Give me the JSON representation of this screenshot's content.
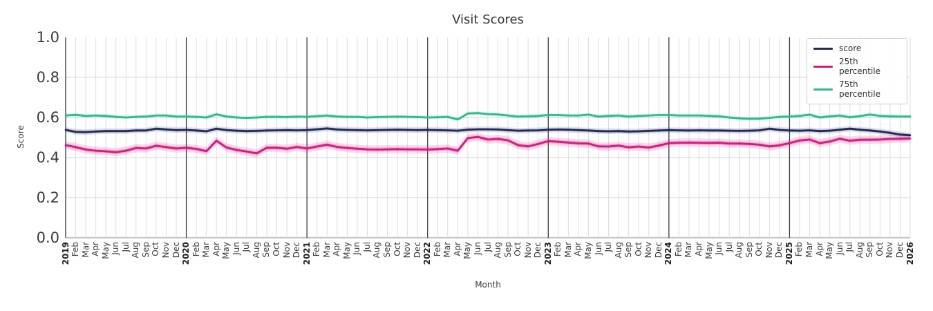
{
  "chart_data": {
    "type": "line",
    "title": "Visit Scores",
    "xlabel": "Month",
    "ylabel": "Score",
    "ylim": [
      0.0,
      1.0
    ],
    "yticks": [
      0.0,
      0.2,
      0.4,
      0.6,
      0.8,
      1.0
    ],
    "ytick_labels": [
      "0.0",
      "0.2",
      "0.4",
      "0.6",
      "0.8",
      "1.0"
    ],
    "grid": true,
    "legend_position": "upper right",
    "x_labels": [
      "2019",
      "Feb",
      "Mar",
      "Apr",
      "May",
      "Jun",
      "Jul",
      "Aug",
      "Sep",
      "Oct",
      "Nov",
      "Dec",
      "2020",
      "Feb",
      "Mar",
      "Apr",
      "May",
      "Jun",
      "Jul",
      "Aug",
      "Sep",
      "Oct",
      "Nov",
      "Dec",
      "2021",
      "Feb",
      "Mar",
      "Apr",
      "May",
      "Jun",
      "Jul",
      "Aug",
      "Sep",
      "Oct",
      "Nov",
      "Dec",
      "2022",
      "Feb",
      "Mar",
      "Apr",
      "May",
      "Jun",
      "Jul",
      "Aug",
      "Sep",
      "Oct",
      "Nov",
      "Dec",
      "2023",
      "Feb",
      "Mar",
      "Apr",
      "May",
      "Jun",
      "Jul",
      "Aug",
      "Sep",
      "Oct",
      "Nov",
      "Dec",
      "2024",
      "Feb",
      "Mar",
      "Apr",
      "May",
      "Jun",
      "Jul",
      "Aug",
      "Sep",
      "Oct",
      "Nov",
      "Dec",
      "2025",
      "Feb",
      "Mar",
      "Apr",
      "May",
      "Jun",
      "Jul",
      "Aug",
      "Sep",
      "Oct",
      "Nov",
      "Dec",
      "2026"
    ],
    "series": [
      {
        "name": "score",
        "color": "#1f2a5e",
        "band": 0.014,
        "values": [
          0.538,
          0.528,
          0.527,
          0.53,
          0.532,
          0.532,
          0.532,
          0.535,
          0.535,
          0.544,
          0.54,
          0.537,
          0.538,
          0.535,
          0.531,
          0.544,
          0.537,
          0.534,
          0.532,
          0.533,
          0.535,
          0.536,
          0.537,
          0.536,
          0.537,
          0.541,
          0.545,
          0.54,
          0.538,
          0.537,
          0.536,
          0.537,
          0.538,
          0.539,
          0.538,
          0.537,
          0.538,
          0.537,
          0.536,
          0.534,
          0.539,
          0.541,
          0.541,
          0.54,
          0.537,
          0.534,
          0.535,
          0.536,
          0.539,
          0.54,
          0.539,
          0.537,
          0.535,
          0.532,
          0.531,
          0.532,
          0.53,
          0.531,
          0.533,
          0.535,
          0.537,
          0.536,
          0.535,
          0.536,
          0.535,
          0.535,
          0.534,
          0.533,
          0.534,
          0.536,
          0.544,
          0.538,
          0.535,
          0.534,
          0.536,
          0.532,
          0.534,
          0.539,
          0.544,
          0.539,
          0.535,
          0.53,
          0.523,
          0.515,
          0.511
        ]
      },
      {
        "name": "25th percentile",
        "color": "#d6187f",
        "band": 0.021,
        "values": [
          0.462,
          0.452,
          0.44,
          0.434,
          0.431,
          0.427,
          0.434,
          0.448,
          0.445,
          0.459,
          0.452,
          0.445,
          0.449,
          0.443,
          0.432,
          0.484,
          0.45,
          0.438,
          0.43,
          0.421,
          0.449,
          0.449,
          0.444,
          0.453,
          0.445,
          0.455,
          0.464,
          0.453,
          0.448,
          0.444,
          0.441,
          0.44,
          0.441,
          0.442,
          0.441,
          0.441,
          0.44,
          0.442,
          0.445,
          0.434,
          0.497,
          0.503,
          0.49,
          0.493,
          0.486,
          0.462,
          0.456,
          0.468,
          0.482,
          0.479,
          0.475,
          0.471,
          0.47,
          0.456,
          0.455,
          0.46,
          0.451,
          0.455,
          0.45,
          0.46,
          0.472,
          0.474,
          0.475,
          0.474,
          0.473,
          0.474,
          0.47,
          0.47,
          0.468,
          0.464,
          0.456,
          0.461,
          0.472,
          0.485,
          0.49,
          0.472,
          0.48,
          0.494,
          0.484,
          0.489,
          0.489,
          0.49,
          0.493,
          0.494,
          0.495
        ]
      },
      {
        "name": "75th percentile",
        "color": "#29bd8b",
        "band": 0.01,
        "values": [
          0.61,
          0.613,
          0.608,
          0.61,
          0.608,
          0.603,
          0.6,
          0.603,
          0.605,
          0.61,
          0.61,
          0.605,
          0.605,
          0.603,
          0.6,
          0.616,
          0.605,
          0.6,
          0.598,
          0.6,
          0.603,
          0.603,
          0.602,
          0.604,
          0.603,
          0.607,
          0.61,
          0.605,
          0.603,
          0.603,
          0.6,
          0.602,
          0.603,
          0.604,
          0.603,
          0.602,
          0.6,
          0.601,
          0.603,
          0.59,
          0.62,
          0.622,
          0.617,
          0.615,
          0.61,
          0.605,
          0.606,
          0.608,
          0.612,
          0.612,
          0.61,
          0.61,
          0.614,
          0.605,
          0.608,
          0.61,
          0.605,
          0.608,
          0.61,
          0.612,
          0.612,
          0.61,
          0.61,
          0.61,
          0.608,
          0.606,
          0.6,
          0.596,
          0.593,
          0.594,
          0.598,
          0.603,
          0.605,
          0.608,
          0.614,
          0.6,
          0.606,
          0.61,
          0.601,
          0.607,
          0.615,
          0.608,
          0.606,
          0.605,
          0.605
        ]
      }
    ],
    "colors": {
      "grid": "#dcdcdc",
      "year_line": "#3a3a3a",
      "baseline": "#c9c9c9",
      "text": "#3a3a3a",
      "legend_border": "#cccccc"
    }
  }
}
